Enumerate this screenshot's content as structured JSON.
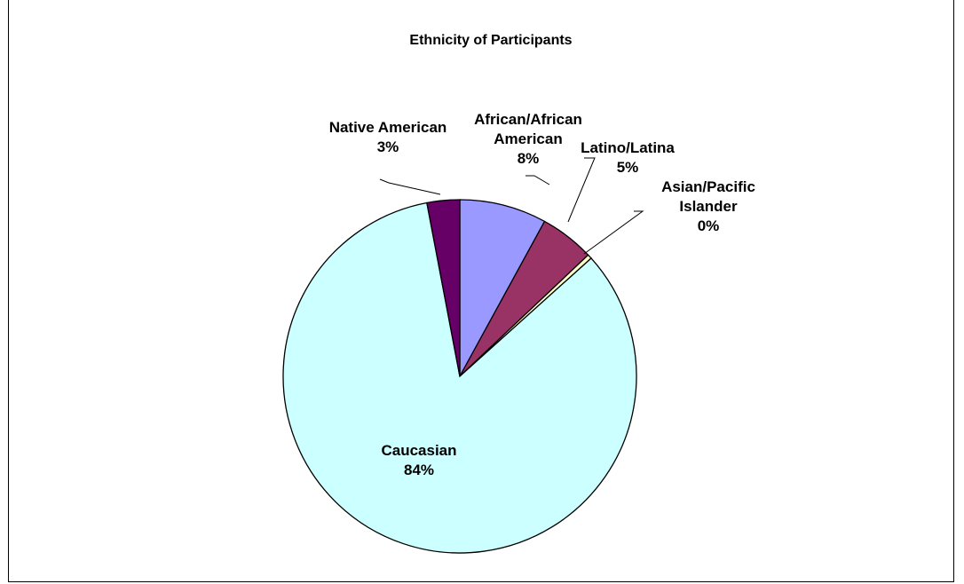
{
  "chart_data": {
    "type": "pie",
    "title": "Ethnicity of Participants",
    "start_angle_deg": 0,
    "direction": "clockwise",
    "slices": [
      {
        "name": "African/African American",
        "label_lines": [
          "African/African",
          "American"
        ],
        "value": 8,
        "percent_label": "8%",
        "color": "#9999ff"
      },
      {
        "name": "Latino/Latina",
        "label_lines": [
          "Latino/Latina"
        ],
        "value": 5,
        "percent_label": "5%",
        "color": "#993366"
      },
      {
        "name": "Asian/Pacific Islander",
        "label_lines": [
          "Asian/Pacific",
          "Islander"
        ],
        "value": 0.4,
        "percent_label": "0%",
        "color": "#ffffcc"
      },
      {
        "name": "Caucasian",
        "label_lines": [
          "Caucasian"
        ],
        "value": 84,
        "percent_label": "84%",
        "color": "#ccffff"
      },
      {
        "name": "Native American",
        "label_lines": [
          "Native American"
        ],
        "value": 3,
        "percent_label": "3%",
        "color": "#660066"
      }
    ]
  }
}
